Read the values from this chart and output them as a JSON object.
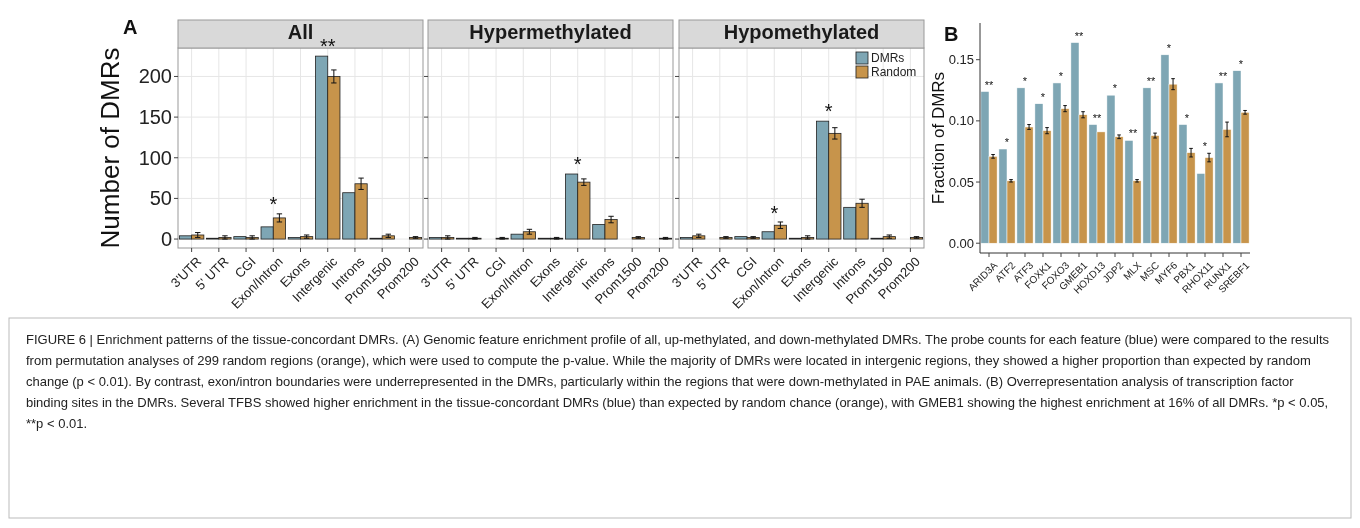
{
  "chart_data": [
    {
      "type": "bar",
      "title": "All",
      "ylabel": "Number of DMRs",
      "categories": [
        "3'UTR",
        "5' UTR",
        "CGI",
        "Exon/Intron",
        "Exons",
        "Intergenic",
        "Introns",
        "Prom1500",
        "Prom200"
      ],
      "ylim": [
        -11,
        235
      ],
      "yticks": [
        0,
        50,
        100,
        150,
        200
      ],
      "grid": true,
      "series": [
        {
          "color": "#7ea6b4",
          "values": [
            4,
            1,
            3,
            15,
            2,
            225,
            57,
            1,
            0
          ]
        },
        {
          "color": "#c7944b",
          "values": [
            5,
            2,
            2,
            26,
            3,
            200,
            68,
            4,
            2
          ],
          "errors": [
            3,
            2,
            2,
            5,
            2,
            8,
            7,
            2,
            1
          ]
        }
      ],
      "annotations": [
        "A",
        {
          "text": "*",
          "x": "Exon/Intron",
          "y": 31
        },
        {
          "text": "**",
          "x": "Intergenic",
          "y": 225
        },
        "FIGURE 6 | Enrichment patterns of the tissue-concordant DMRs. (A) Genomic feature enrichment profile of all, up-methylated, and down-methylated DMRs. The probe counts for each feature (blue) were compared to the results from permutation analyses of 299 random regions (orange), which were used to compute the p-value. While the majority of DMRs were located in intergenic regions, they showed a higher proportion than expected by random change (p < 0.01). By contrast, exon/intron boundaries were underrepresented in the DMRs, particularly within the regions that were down-methylated in PAE animals. (B) Overrepresentation analysis of transcription factor binding sites in the DMRs. Several TFBS showed higher enrichment in the tissue-concordant DMRs (blue) than expected by random chance (orange), with GMEB1 showing the highest enrichment at 16% of all DMRs. *p < 0.05, **p < 0.01."
      ]
    },
    {
      "type": "bar",
      "title": "Hypermethylated",
      "categories": [
        "3'UTR",
        "5' UTR",
        "CGI",
        "Exon/Intron",
        "Exons",
        "Intergenic",
        "Introns",
        "Prom1500",
        "Prom200"
      ],
      "ylim": [
        -11,
        235
      ],
      "yticks": [
        0,
        50,
        100,
        150,
        200
      ],
      "grid": true,
      "tick_labels": "x",
      "series": [
        {
          "color": "#7ea6b4",
          "values": [
            2,
            1,
            0,
            6,
            1,
            80,
            18,
            0,
            0
          ]
        },
        {
          "color": "#c7944b",
          "values": [
            2,
            1,
            1,
            9,
            1,
            70,
            24,
            2,
            1
          ],
          "errors": [
            2,
            1,
            1,
            3,
            1,
            4,
            4,
            1,
            1
          ]
        }
      ],
      "annotations": [
        {
          "text": "*",
          "x": "Intergenic",
          "y": 80
        }
      ]
    },
    {
      "type": "bar",
      "title": "Hypomethylated",
      "categories": [
        "3'UTR",
        "5' UTR",
        "CGI",
        "Exon/Intron",
        "Exons",
        "Intergenic",
        "Introns",
        "Prom1500",
        "Prom200"
      ],
      "ylim": [
        -11,
        235
      ],
      "yticks": [
        0,
        50,
        100,
        150,
        200
      ],
      "grid": true,
      "tick_labels": "x",
      "legend": "top right",
      "series": [
        {
          "name": "DMRs",
          "color": "#7ea6b4",
          "values": [
            2,
            0,
            3,
            9,
            1,
            145,
            39,
            1,
            0
          ]
        },
        {
          "name": "Random",
          "color": "#c7944b",
          "values": [
            4,
            2,
            2,
            17,
            2,
            130,
            44,
            3,
            2
          ],
          "errors": [
            2,
            1,
            1,
            4,
            2,
            7,
            5,
            2,
            1
          ]
        }
      ],
      "annotations": [
        {
          "text": "*",
          "x": "Exon/Intron",
          "y": 20
        },
        {
          "text": "*",
          "x": "Intergenic",
          "y": 145
        }
      ]
    },
    {
      "type": "bar",
      "ylabel": "Fraction of DMRs",
      "categories": [
        "ARID3A",
        "ATF2",
        "ATF3",
        "FOXK1",
        "FOXO3",
        "GMEB1",
        "HOXD13",
        "JDP2",
        "MLX",
        "MSC",
        "MYF6",
        "PBX1",
        "RHOX11",
        "RUNX1",
        "SREBF1"
      ],
      "ylim": [
        -0.008,
        0.18
      ],
      "yticks": [
        {
          "value": 0,
          "label": "0.00"
        },
        {
          "value": 0.05,
          "label": "0.05"
        },
        {
          "value": 0.1,
          "label": "0.10"
        },
        {
          "value": 0.15,
          "label": "0.15"
        }
      ],
      "series": [
        {
          "color": "#7ea6b4",
          "values": [
            0.124,
            0.077,
            0.127,
            0.114,
            0.131,
            0.164,
            0.097,
            0.121,
            0.084,
            0.127,
            0.154,
            0.097,
            0.057,
            0.131,
            0.141
          ]
        },
        {
          "color": "#c7944b",
          "values": [
            0.071,
            0.051,
            0.095,
            0.092,
            0.11,
            0.105,
            0.091,
            0.087,
            0.051,
            0.088,
            0.13,
            0.074,
            0.07,
            0.093,
            0.107
          ],
          "errors": [
            0.0015,
            0.001,
            0.002,
            0.0025,
            0.0025,
            0.0025,
            null,
            0.0015,
            0.001,
            0.002,
            0.0045,
            0.0035,
            0.0035,
            0.006,
            0.0015
          ]
        }
      ],
      "annotations": [
        "B",
        {
          "text": "**",
          "x": "ARID3A",
          "y": 0.124
        },
        {
          "text": "*",
          "x": "ATF2",
          "y": 0.077
        },
        {
          "text": "*",
          "x": "ATF3",
          "y": 0.127
        },
        {
          "text": "*",
          "x": "FOXK1",
          "y": 0.114
        },
        {
          "text": "*",
          "x": "FOXO3",
          "y": 0.131
        },
        {
          "text": "**",
          "x": "GMEB1",
          "y": 0.164
        },
        {
          "text": "**",
          "x": "HOXD13",
          "y": 0.097
        },
        {
          "text": "*",
          "x": "JDP2",
          "y": 0.121
        },
        {
          "text": "**",
          "x": "MLX",
          "y": 0.084
        },
        {
          "text": "**",
          "x": "MSC",
          "y": 0.127
        },
        {
          "text": "*",
          "x": "MYF6",
          "y": 0.154
        },
        {
          "text": "*",
          "x": "PBX1",
          "y": 0.097
        },
        {
          "text": "*",
          "x": "RHOX11",
          "y": 0.0735
        },
        {
          "text": "**",
          "x": "RUNX1",
          "y": 0.131
        },
        {
          "text": "*",
          "x": "SREBF1",
          "y": 0.141
        }
      ]
    }
  ]
}
